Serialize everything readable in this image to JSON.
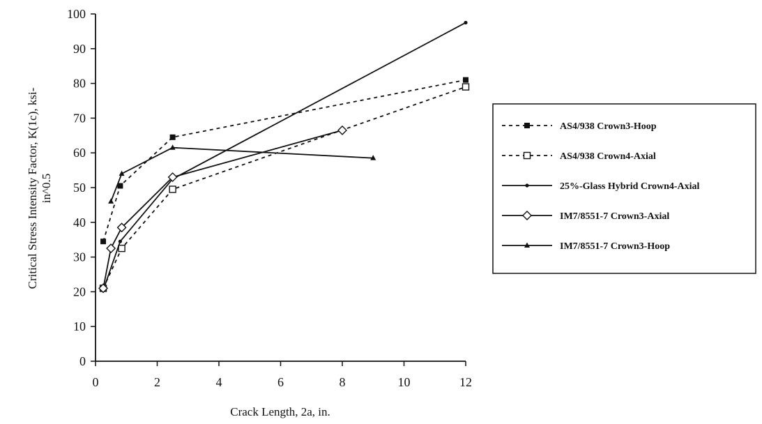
{
  "chart_data": {
    "type": "line",
    "title": "",
    "xlabel": "Crack Length, 2a, in.",
    "ylabel_line1": "Critical Stress Intensity Factor, K(1c), ksi-",
    "ylabel_line2": "in^0.5",
    "xlim": [
      0,
      12
    ],
    "ylim": [
      0,
      100
    ],
    "x_ticks": [
      0,
      2,
      4,
      6,
      8,
      10,
      12
    ],
    "y_ticks": [
      0,
      10,
      20,
      30,
      40,
      50,
      60,
      70,
      80,
      90,
      100
    ],
    "grid": false,
    "legend_position": "right",
    "series": [
      {
        "name": "AS4/938 Crown3-Hoop",
        "style": "dashed",
        "marker": "filled-square",
        "x": [
          0.25,
          0.8,
          2.5,
          12
        ],
        "y": [
          34.5,
          50.5,
          64.5,
          81
        ]
      },
      {
        "name": "AS4/938 Crown4-Axial",
        "style": "dashed",
        "marker": "open-square",
        "x": [
          0.25,
          0.85,
          2.5,
          12
        ],
        "y": [
          21,
          32.5,
          49.5,
          79
        ]
      },
      {
        "name": "25%-Glass Hybrid Crown4-Axial",
        "style": "solid",
        "marker": "dot",
        "x": [
          0.25,
          0.8,
          2.5,
          12
        ],
        "y": [
          20.5,
          34.5,
          52.5,
          97.5
        ]
      },
      {
        "name": "IM7/8551-7 Crown3-Axial",
        "style": "solid",
        "marker": "open-diamond",
        "x": [
          0.25,
          0.5,
          0.85,
          2.5,
          8
        ],
        "y": [
          21,
          32.5,
          38.5,
          53,
          66.5
        ]
      },
      {
        "name": "IM7/8551-7 Crown3-Hoop",
        "style": "solid",
        "marker": "filled-triangle",
        "x": [
          0.5,
          0.85,
          2.5,
          9
        ],
        "y": [
          46,
          54,
          61.5,
          58.5
        ]
      }
    ]
  }
}
